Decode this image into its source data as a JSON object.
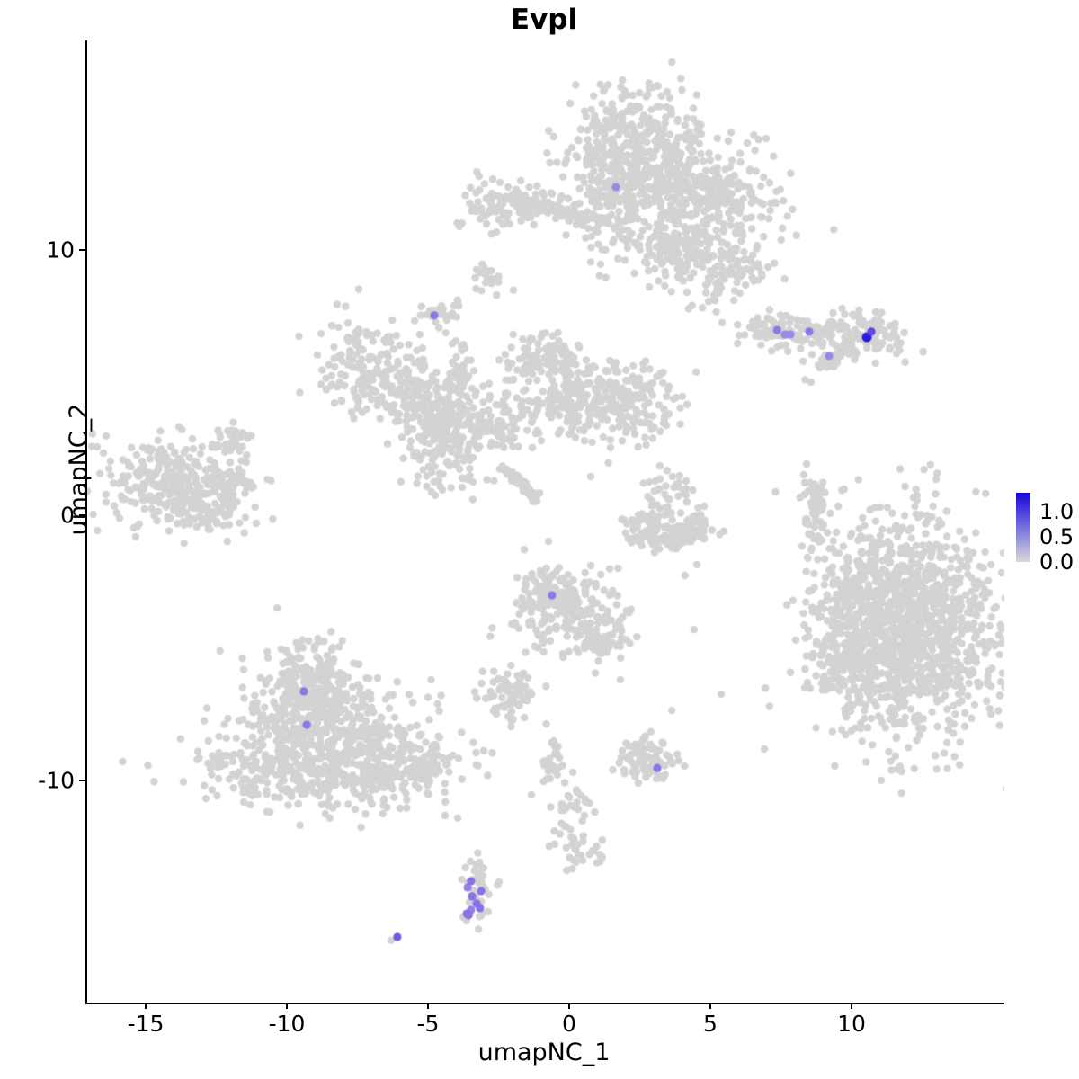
{
  "title": "Evpl",
  "axes": {
    "xlabel": "umapNC_1",
    "ylabel": "umapNC_2",
    "x_ticks": [
      -15,
      -10,
      -5,
      0,
      5,
      10
    ],
    "y_ticks": [
      -10,
      0,
      10
    ]
  },
  "legend": {
    "tick_labels": [
      "1.0",
      "0.5",
      "0.0"
    ],
    "tick_values": [
      1.0,
      0.5,
      0.0
    ],
    "bar_range": [
      0.0,
      1.38
    ],
    "color_high": "#1508dc",
    "color_low": "#d9d9d9"
  },
  "chart_data": {
    "type": "scatter",
    "title": "Evpl",
    "xlabel": "umapNC_1",
    "ylabel": "umapNC_2",
    "xlim": [
      -17.1,
      15.4
    ],
    "ylim": [
      -17.9,
      17.9
    ],
    "grid": false,
    "legend_position": "right",
    "point_color_default": "#d3d3d3",
    "background_clusters_format": [
      "x",
      "y",
      "sd_x",
      "sd_y",
      "n_points",
      "rotation_deg"
    ],
    "background_clusters": [
      [
        2.13,
        14.34,
        1.27,
        0.95,
        260,
        0
      ],
      [
        2.77,
        12.47,
        1.43,
        1.02,
        280,
        0
      ],
      [
        5.0,
        11.8,
        1.27,
        1.19,
        220,
        0
      ],
      [
        1.18,
        11.46,
        0.57,
        1.02,
        70,
        0
      ],
      [
        4.04,
        9.76,
        0.89,
        0.68,
        90,
        0
      ],
      [
        5.7,
        9.25,
        0.89,
        0.61,
        80,
        30
      ],
      [
        3.57,
        10.1,
        0.38,
        0.34,
        30,
        0
      ],
      [
        2.04,
        10.68,
        0.19,
        0.41,
        12,
        0
      ],
      [
        -2.32,
        11.69,
        0.89,
        0.44,
        110,
        0
      ],
      [
        -0.57,
        11.56,
        0.64,
        0.27,
        40,
        0
      ],
      [
        0.38,
        11.19,
        0.32,
        0.17,
        12,
        0
      ],
      [
        -2.83,
        8.88,
        0.32,
        0.24,
        22,
        -30
      ],
      [
        -4.59,
        7.59,
        0.29,
        0.34,
        26,
        0
      ],
      [
        7.61,
        6.92,
        0.83,
        0.31,
        90,
        -8
      ],
      [
        10.03,
        6.85,
        0.83,
        0.47,
        130,
        0
      ],
      [
        9.3,
        5.9,
        0.45,
        0.2,
        28,
        35
      ],
      [
        -6.94,
        5.53,
        1.15,
        0.88,
        200,
        -20
      ],
      [
        -5.45,
        4.24,
        0.51,
        0.47,
        60,
        0
      ],
      [
        -4.3,
        3.76,
        0.7,
        0.88,
        130,
        0
      ],
      [
        -4.55,
        2.31,
        0.64,
        0.75,
        110,
        0
      ],
      [
        -3.92,
        5.46,
        0.25,
        0.75,
        30,
        0
      ],
      [
        -2.55,
        3.22,
        0.7,
        0.47,
        55,
        -20
      ],
      [
        -0.89,
        5.86,
        0.76,
        0.51,
        110,
        0
      ],
      [
        -0.35,
        4.34,
        0.7,
        0.54,
        100,
        0
      ],
      [
        1.75,
        4.34,
        1.08,
        0.75,
        210,
        -15
      ],
      [
        -2.01,
        4.27,
        0.57,
        0.34,
        22,
        0
      ],
      [
        -13.92,
        1.12,
        1.34,
        0.81,
        330,
        -10
      ],
      [
        -12.1,
        2.75,
        0.38,
        0.31,
        30,
        0
      ],
      [
        -11.94,
        1.29,
        0.51,
        0.24,
        30,
        0
      ],
      [
        -13.09,
        0.1,
        0.45,
        0.31,
        30,
        0
      ],
      [
        2.61,
        -0.41,
        0.38,
        0.34,
        45,
        0
      ],
      [
        3.57,
        -0.81,
        0.57,
        0.27,
        70,
        5
      ],
      [
        4.52,
        -0.51,
        0.32,
        0.31,
        35,
        0
      ],
      [
        3.57,
        0.85,
        0.45,
        0.41,
        40,
        0
      ],
      [
        8.66,
        0.27,
        0.22,
        0.88,
        55,
        8
      ],
      [
        8.57,
        -1.25,
        0.16,
        0.34,
        10,
        0
      ],
      [
        -0.16,
        -3.63,
        1.08,
        0.81,
        230,
        -10
      ],
      [
        -0.83,
        -2.44,
        0.29,
        0.41,
        30,
        0
      ],
      [
        1.11,
        -4.81,
        0.45,
        0.34,
        40,
        30
      ],
      [
        12.01,
        -4.24,
        1.66,
        2.1,
        1250,
        0
      ],
      [
        9.78,
        -5.15,
        0.7,
        1.42,
        140,
        0
      ],
      [
        10.1,
        -2.78,
        0.51,
        0.61,
        50,
        0
      ],
      [
        -9.17,
        -6.34,
        0.83,
        0.88,
        220,
        0
      ],
      [
        -8.69,
        -8.2,
        1.75,
        1.02,
        450,
        0
      ],
      [
        -9.33,
        -9.73,
        1.91,
        0.68,
        280,
        0
      ],
      [
        -5.83,
        -9.56,
        1.11,
        0.54,
        130,
        25
      ],
      [
        -2.32,
        -6.68,
        0.45,
        0.54,
        70,
        0
      ],
      [
        -0.73,
        -9.32,
        0.25,
        0.47,
        25,
        0
      ],
      [
        -0.03,
        -11.08,
        0.38,
        0.68,
        35,
        10
      ],
      [
        0.06,
        -12.78,
        0.51,
        0.34,
        25,
        0
      ],
      [
        0.96,
        -12.71,
        0.16,
        0.2,
        6,
        0
      ],
      [
        2.71,
        -9.32,
        0.57,
        0.41,
        70,
        0
      ],
      [
        2.52,
        -8.64,
        0.25,
        0.17,
        12,
        0
      ],
      [
        -3.34,
        -14.14,
        0.29,
        0.61,
        45,
        0
      ]
    ],
    "streaks_format": [
      "x1",
      "y1",
      "x2",
      "y2",
      "n_points",
      "jitter"
    ],
    "streaks": [
      [
        -2.42,
        1.8,
        -1.15,
        0.54,
        55,
        0.1
      ]
    ],
    "extra_points": [
      [
        -2.87,
        4.51
      ],
      [
        -1.05,
        2.81
      ],
      [
        0.7,
        1.46
      ],
      [
        3.15,
        1.86
      ],
      [
        4.46,
        -1.86
      ],
      [
        4.04,
        -2.27
      ],
      [
        4.36,
        -4.31
      ],
      [
        5.32,
        -6.75
      ],
      [
        3.57,
        -7.36
      ],
      [
        8.5,
        5.02
      ],
      [
        9.36,
        -1.42
      ],
      [
        -4.46,
        -11.32
      ],
      [
        -4.01,
        -11.42
      ],
      [
        1.75,
        -6.2
      ],
      [
        -6.37,
        -16.03
      ],
      [
        -3.1,
        -13.3
      ]
    ],
    "expressing_cells": [
      {
        "x": 7.3,
        "y": 6.98,
        "value": 0.6,
        "color": "#8b78e8"
      },
      {
        "x": 7.58,
        "y": 6.81,
        "value": 0.5,
        "color": "#9a8ae8"
      },
      {
        "x": 7.77,
        "y": 6.81,
        "value": 0.5,
        "color": "#9a8ae8"
      },
      {
        "x": 8.44,
        "y": 6.92,
        "value": 0.6,
        "color": "#8b78e8"
      },
      {
        "x": 9.14,
        "y": 6.0,
        "value": 0.5,
        "color": "#9a8ae8"
      },
      {
        "x": 10.48,
        "y": 6.71,
        "value": 1.3,
        "color": "#2b1bdf"
      },
      {
        "x": 10.64,
        "y": 6.92,
        "value": 0.8,
        "color": "#5b48e4"
      },
      {
        "x": -4.84,
        "y": 7.53,
        "value": 0.6,
        "color": "#8b78e8"
      },
      {
        "x": 1.59,
        "y": 12.37,
        "value": 0.5,
        "color": "#9a8ae8"
      },
      {
        "x": -0.67,
        "y": -3.02,
        "value": 0.6,
        "color": "#8b78e8"
      },
      {
        "x": 3.06,
        "y": -9.53,
        "value": 0.6,
        "color": "#8b78e8"
      },
      {
        "x": -9.46,
        "y": -6.64,
        "value": 0.6,
        "color": "#8b78e8"
      },
      {
        "x": -9.36,
        "y": -7.9,
        "value": 0.6,
        "color": "#8b78e8"
      },
      {
        "x": -6.15,
        "y": -15.9,
        "value": 0.7,
        "color": "#6f5ce5"
      },
      {
        "x": -3.54,
        "y": -13.8,
        "value": 0.7,
        "color": "#8a70e4"
      },
      {
        "x": -3.66,
        "y": -14.03,
        "value": 0.6,
        "color": "#9481e0"
      },
      {
        "x": -3.18,
        "y": -14.17,
        "value": 0.6,
        "color": "#8a70e4"
      },
      {
        "x": -3.5,
        "y": -14.37,
        "value": 0.7,
        "color": "#8a70e4"
      },
      {
        "x": -3.34,
        "y": -14.64,
        "value": 0.7,
        "color": "#8a70e4"
      },
      {
        "x": -3.22,
        "y": -14.81,
        "value": 0.7,
        "color": "#8a70e4"
      },
      {
        "x": -3.54,
        "y": -14.88,
        "value": 0.7,
        "color": "#9481e0"
      },
      {
        "x": -3.69,
        "y": -15.02,
        "value": 0.7,
        "color": "#8a70e4"
      },
      {
        "x": -3.63,
        "y": -15.08,
        "value": 0.7,
        "color": "#8a70e4"
      }
    ]
  }
}
